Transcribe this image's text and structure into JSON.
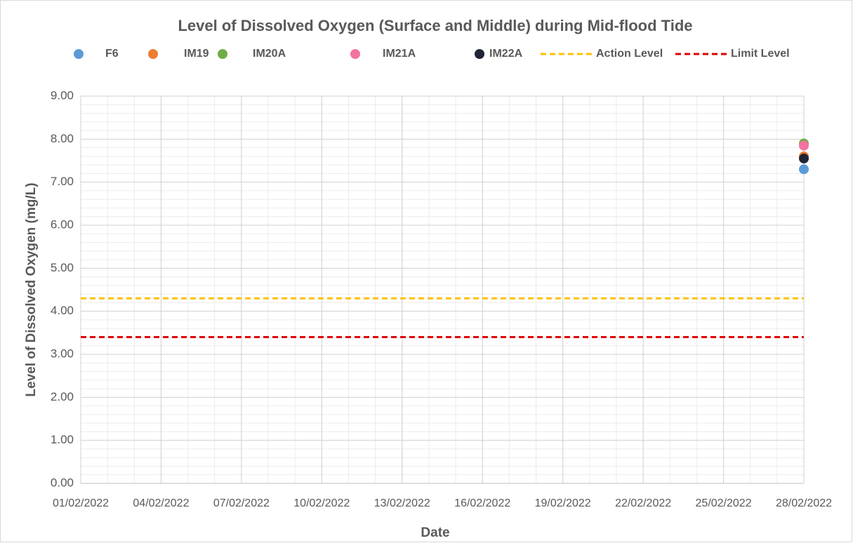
{
  "chart_data": {
    "type": "scatter",
    "title": "Level of Dissolved Oxygen (Surface and Middle) during Mid-flood Tide",
    "x_label": "Date",
    "y_label": "Level of Dissolved Oxygen (mg/L)",
    "xlim": [
      "01/02/2022",
      "28/02/2022"
    ],
    "xticks": [
      "01/02/2022",
      "04/02/2022",
      "07/02/2022",
      "10/02/2022",
      "13/02/2022",
      "16/02/2022",
      "19/02/2022",
      "22/02/2022",
      "25/02/2022",
      "28/02/2022"
    ],
    "ylim": [
      0,
      9
    ],
    "yticks": [
      {
        "value": 0,
        "label": "0.00"
      },
      {
        "value": 1,
        "label": "1.00"
      },
      {
        "value": 2,
        "label": "2.00"
      },
      {
        "value": 3,
        "label": "3.00"
      },
      {
        "value": 4,
        "label": "4.00"
      },
      {
        "value": 5,
        "label": "5.00"
      },
      {
        "value": 6,
        "label": "6.00"
      },
      {
        "value": 7,
        "label": "7.00"
      },
      {
        "value": 8,
        "label": "8.00"
      },
      {
        "value": 9,
        "label": "9.00"
      }
    ],
    "grid": true,
    "minor_grid": true,
    "legend": "top",
    "series": [
      {
        "name": "F6",
        "color": "#5b9bd5",
        "x": [
          "28/02/2022"
        ],
        "values": [
          7.3
        ]
      },
      {
        "name": "IM19",
        "color": "#ed7d31",
        "x": [
          "28/02/2022"
        ],
        "values": [
          7.6
        ]
      },
      {
        "name": "IM20A",
        "color": "#70ad47",
        "x": [
          "28/02/2022"
        ],
        "values": [
          7.9
        ]
      },
      {
        "name": "IM21A",
        "color": "#f4729f",
        "x": [
          "28/02/2022"
        ],
        "values": [
          7.85
        ]
      },
      {
        "name": "IM22A",
        "color": "#1f2535",
        "x": [
          "28/02/2022"
        ],
        "values": [
          7.55
        ]
      },
      {
        "name": "Action Level",
        "type": "line",
        "dashed": true,
        "color": "#ffc000",
        "x": [
          "01/02/2022",
          "28/02/2022"
        ],
        "values": [
          4.3,
          4.3
        ]
      },
      {
        "name": "Limit Level",
        "type": "line",
        "dashed": true,
        "color": "#e00000",
        "x": [
          "01/02/2022",
          "28/02/2022"
        ],
        "values": [
          3.4,
          3.4
        ]
      }
    ]
  }
}
